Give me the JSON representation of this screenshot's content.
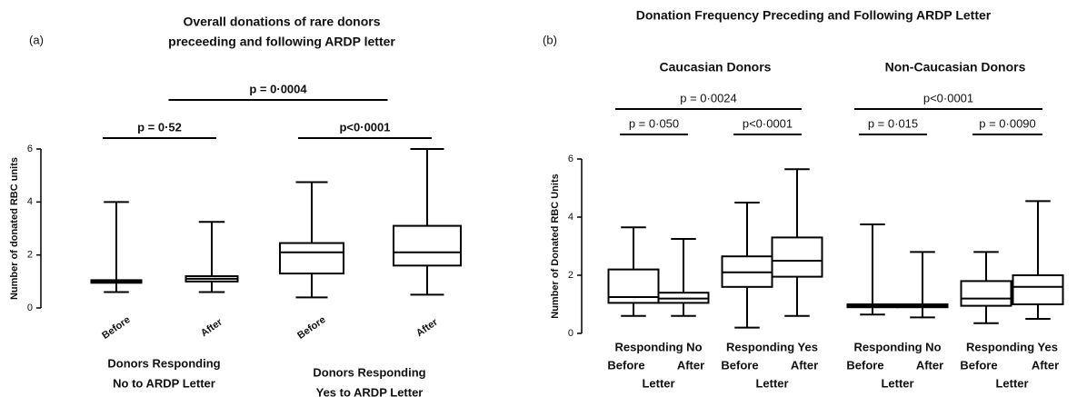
{
  "chart_data": [
    {
      "type": "box",
      "panel": "(a)",
      "title": [
        "Overall donations of rare donors",
        "preceeding and following ARDP letter"
      ],
      "ylabel": "Number of donated RBC units",
      "categories": [
        "Before",
        "After",
        "Before",
        "After"
      ],
      "groups": [
        {
          "lines": [
            "Donors  Responding",
            "No to  ARDP Letter"
          ],
          "span": [
            0,
            1
          ]
        },
        {
          "lines": [
            "Donors Responding",
            "Yes to ARDP Letter"
          ],
          "span": [
            2,
            3
          ]
        }
      ],
      "min": [
        0.6,
        0.6,
        0.4,
        0.5
      ],
      "q1": [
        0.95,
        1.0,
        1.3,
        1.6
      ],
      "median": [
        1.0,
        1.1,
        2.1,
        2.1
      ],
      "q3": [
        1.05,
        1.2,
        2.45,
        3.1
      ],
      "max": [
        4.0,
        3.25,
        4.75,
        6.0
      ],
      "color": "#000000",
      "ylim": [
        0,
        6
      ],
      "yticks": [
        0,
        2,
        4,
        6
      ],
      "annotations": [
        {
          "text": "p = 0·52",
          "span": [
            0,
            1
          ]
        },
        {
          "text": "p<0·0001",
          "span": [
            2,
            3
          ]
        },
        {
          "text": "p = 0·0004",
          "span": [
            0,
            3
          ]
        }
      ]
    },
    {
      "type": "box",
      "panel": "(b)",
      "title": [
        "Donation Frequency Preceding and Following ARDP Letter"
      ],
      "ylabel": "Number of Donated RBC Units",
      "sections": [
        {
          "title": "Caucasian Donors",
          "span": [
            0,
            3
          ]
        },
        {
          "title": "Non-Caucasian Donors",
          "span": [
            4,
            7
          ]
        }
      ],
      "categories": [
        "Before",
        "After",
        "Before",
        "After",
        "Before",
        "After",
        "Before",
        "After"
      ],
      "groups": [
        {
          "lines": [
            "Responding No",
            "Letter"
          ],
          "span": [
            0,
            1
          ]
        },
        {
          "lines": [
            "Responding Yes",
            "Letter"
          ],
          "span": [
            2,
            3
          ]
        },
        {
          "lines": [
            "Responding No",
            "Letter"
          ],
          "span": [
            4,
            5
          ]
        },
        {
          "lines": [
            "Responding Yes",
            "Letter"
          ],
          "span": [
            6,
            7
          ]
        }
      ],
      "min": [
        0.6,
        0.6,
        0.2,
        0.6,
        0.65,
        0.55,
        0.35,
        0.5
      ],
      "q1": [
        1.05,
        1.05,
        1.6,
        1.95,
        0.9,
        0.9,
        0.95,
        1.0
      ],
      "median": [
        1.25,
        1.2,
        2.1,
        2.5,
        0.95,
        0.95,
        1.2,
        1.6
      ],
      "q3": [
        2.2,
        1.4,
        2.65,
        3.3,
        1.0,
        1.0,
        1.8,
        2.0
      ],
      "max": [
        3.65,
        3.25,
        4.5,
        5.65,
        3.75,
        2.8,
        2.8,
        4.55
      ],
      "color": "#000000",
      "ylim": [
        0,
        6
      ],
      "yticks": [
        0,
        2,
        4,
        6
      ],
      "annotations": [
        {
          "text": "p = 0·050",
          "span": [
            0,
            1
          ]
        },
        {
          "text": "p<0·0001",
          "span": [
            2,
            3
          ]
        },
        {
          "text": "p = 0·0024",
          "span": [
            0,
            3
          ]
        },
        {
          "text": "p = 0·015",
          "span": [
            4,
            5
          ]
        },
        {
          "text": "p = 0·0090",
          "span": [
            6,
            7
          ]
        },
        {
          "text": "p<0·0001",
          "span": [
            4,
            7
          ]
        }
      ]
    }
  ]
}
